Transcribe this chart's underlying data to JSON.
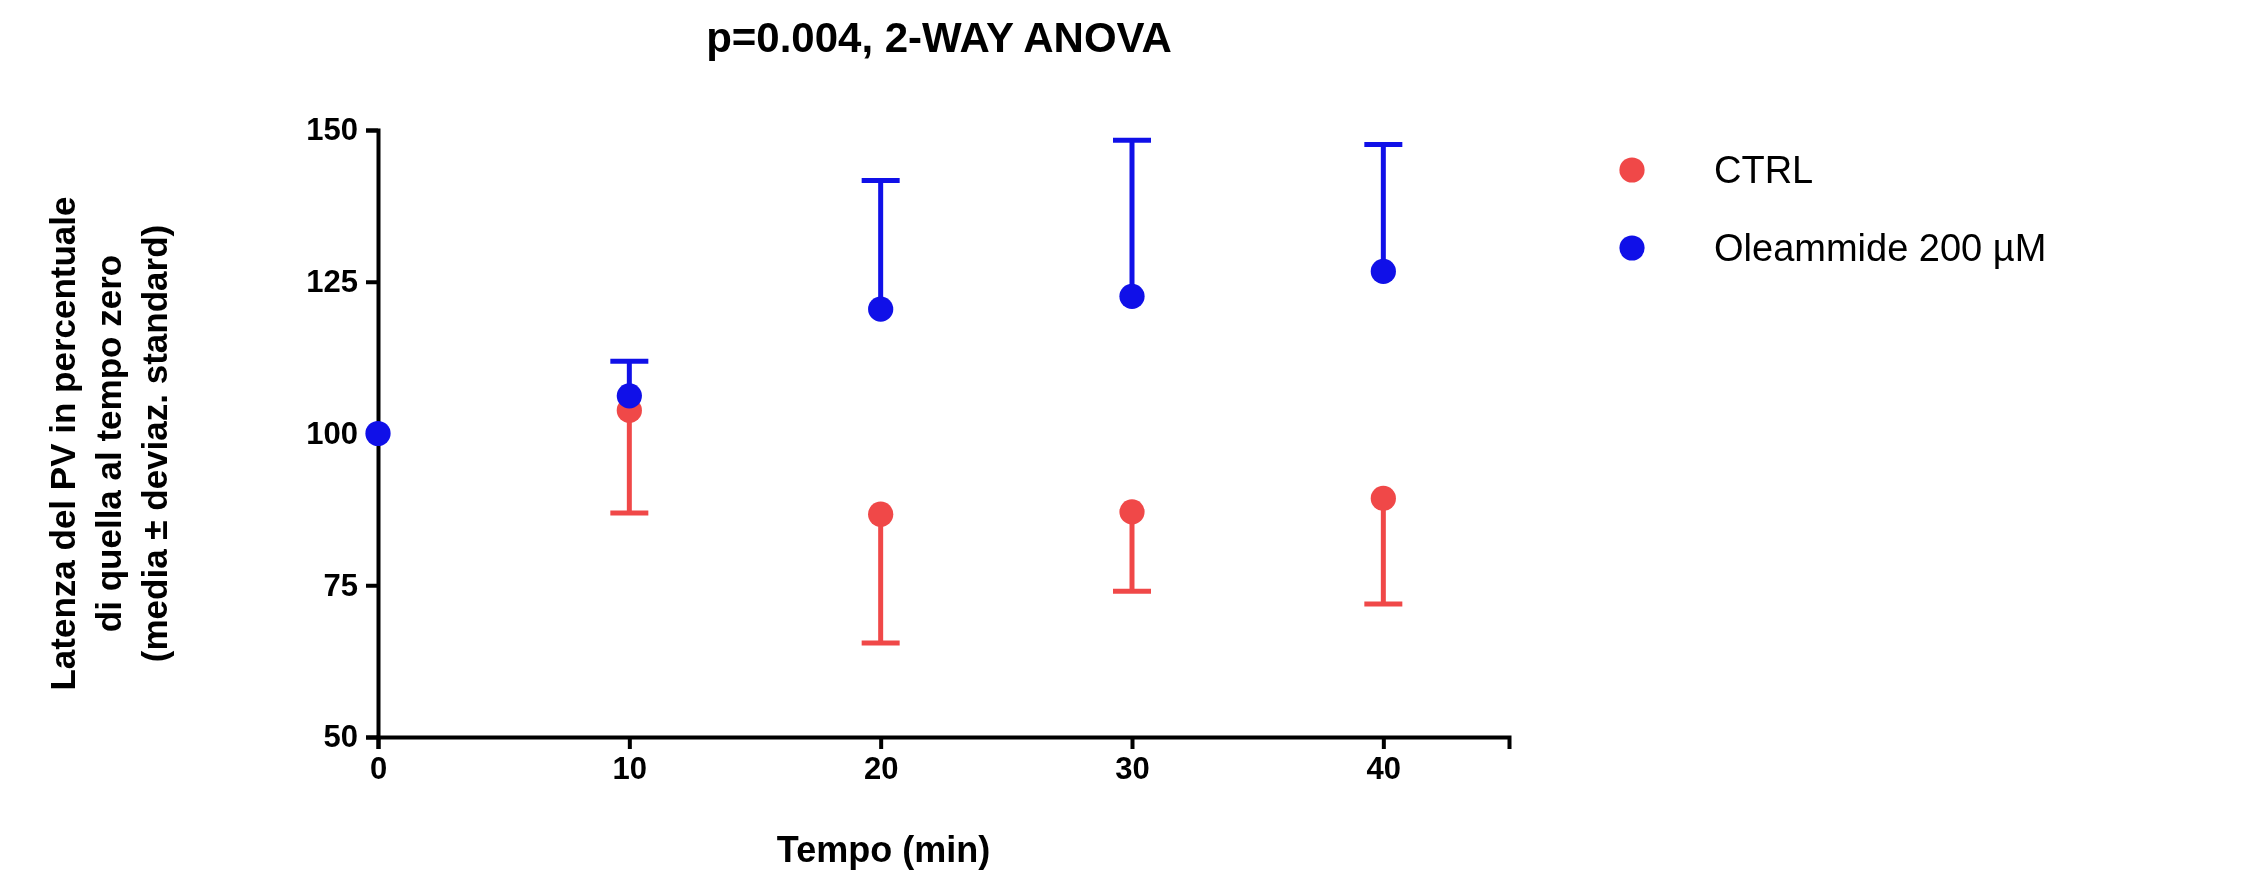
{
  "chart_data": {
    "type": "scatter",
    "title": "p=0.004, 2-WAY ANOVA",
    "xlabel": "Tempo (min)",
    "ylabel": "Latenza del PV in percentuale\ndi quella al tempo zero\n(media ± deviaz. standard)",
    "x": [
      0,
      10,
      20,
      30,
      40
    ],
    "series": [
      {
        "name": "CTRL",
        "color": "#f04848",
        "values": [
          null,
          103.8,
          86.7,
          87.1,
          89.3
        ],
        "errors": [
          null,
          [
            86.9,
            103.8
          ],
          [
            65.5,
            86.7
          ],
          [
            74.0,
            87.1
          ],
          [
            71.9,
            89.3
          ]
        ]
      },
      {
        "name": "Oleammide 200 µM",
        "color": "#1010e8",
        "values": [
          100,
          106.2,
          120.5,
          122.6,
          126.7
        ],
        "errors": [
          null,
          [
            106.2,
            111.9
          ],
          [
            120.5,
            141.7
          ],
          [
            122.6,
            148.3
          ],
          [
            126.7,
            147.6
          ]
        ]
      }
    ],
    "xlim": [
      0,
      45
    ],
    "xticks": [
      0,
      10,
      20,
      30,
      40
    ],
    "ylim": [
      50,
      150
    ],
    "yticks": [
      50,
      75,
      100,
      125,
      150
    ],
    "grid": false,
    "legend": "right",
    "marker": "circle"
  }
}
